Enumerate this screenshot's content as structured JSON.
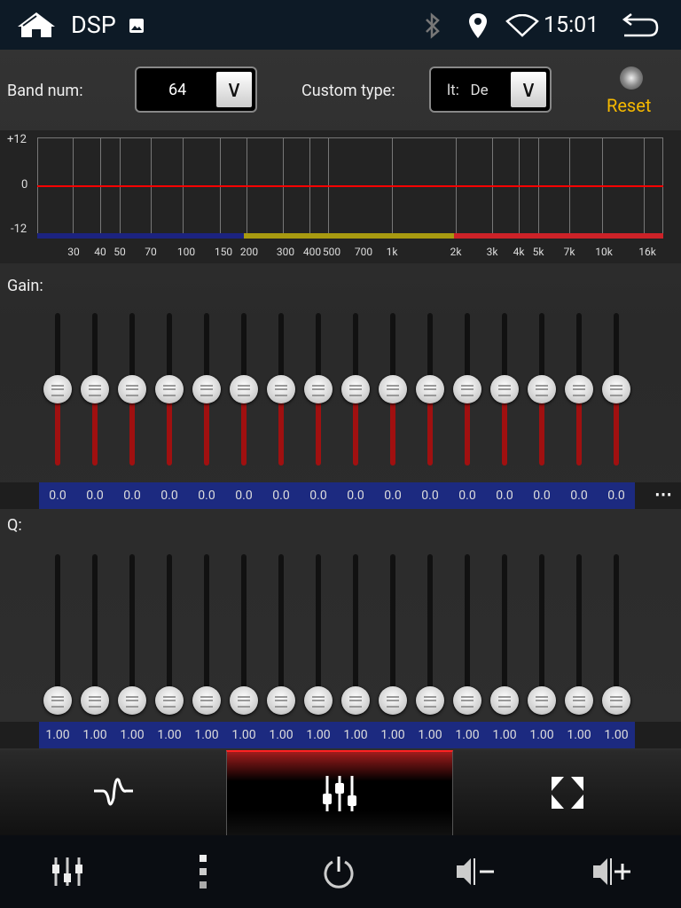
{
  "status": {
    "title": "DSP",
    "time": "15:01",
    "icons": [
      "home-icon",
      "image-icon",
      "bluetooth-icon",
      "location-icon",
      "wifi-icon",
      "back-icon"
    ]
  },
  "controls": {
    "band_num_label": "Band num:",
    "band_num_value": "64",
    "custom_type_label": "Custom type:",
    "custom_type_value": "lt:   De",
    "reset_label": "Reset",
    "reset_color": "#f5b800"
  },
  "chart": {
    "y_labels": [
      "+12",
      "0",
      "-12"
    ],
    "freq_labels": [
      "30",
      "40",
      "50",
      "70",
      "100",
      "150",
      "200",
      "300",
      "400",
      "500",
      "700",
      "1k",
      "2k",
      "3k",
      "4k",
      "5k",
      "7k",
      "10k",
      "16k"
    ],
    "curve_gain_db": 0,
    "band_colors": [
      "#1c2380",
      "#a89a10",
      "#cc2228"
    ]
  },
  "gain": {
    "label": "Gain:",
    "values": [
      "0.0",
      "0.0",
      "0.0",
      "0.0",
      "0.0",
      "0.0",
      "0.0",
      "0.0",
      "0.0",
      "0.0",
      "0.0",
      "0.0",
      "0.0",
      "0.0",
      "0.0",
      "0.0"
    ],
    "range": [
      -12,
      12
    ],
    "more_label": "⋯"
  },
  "q": {
    "label": "Q:",
    "values": [
      "1.00",
      "1.00",
      "1.00",
      "1.00",
      "1.00",
      "1.00",
      "1.00",
      "1.00",
      "1.00",
      "1.00",
      "1.00",
      "1.00",
      "1.00",
      "1.00",
      "1.00",
      "1.00"
    ]
  },
  "tabs": [
    {
      "icon": "curve-icon",
      "active": false
    },
    {
      "icon": "equalizer-icon",
      "active": true
    },
    {
      "icon": "fullscreen-icon",
      "active": false
    }
  ],
  "nav": [
    "equalizer-icon",
    "more-vert-icon",
    "power-icon",
    "volume-down-icon",
    "volume-up-icon"
  ]
}
